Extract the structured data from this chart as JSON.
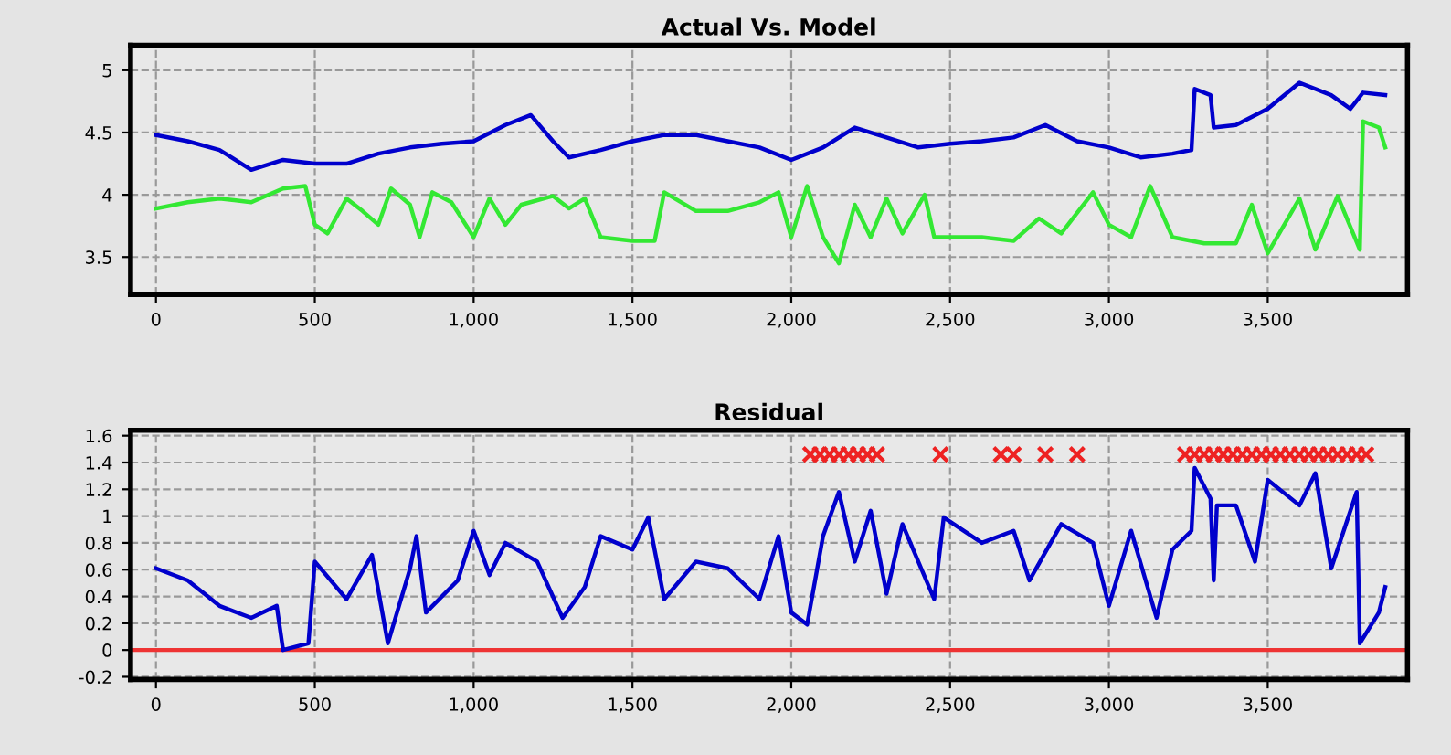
{
  "chart_data": [
    {
      "type": "line",
      "title": "Actual Vs. Model",
      "xlim": [
        -80,
        3940
      ],
      "ylim": [
        3.2,
        5.2
      ],
      "xticks": [
        0,
        500,
        {
          "value": 1000,
          "label": "1,000"
        },
        {
          "value": 1500,
          "label": "1,500"
        },
        {
          "value": 2000,
          "label": "2,000"
        },
        {
          "value": 2500,
          "label": "2,500"
        },
        {
          "value": 3000,
          "label": "3,000"
        },
        {
          "value": 3500,
          "label": "3,500"
        }
      ],
      "yticks": [
        3.5,
        4,
        4.5,
        5
      ],
      "grid": true,
      "legend": false,
      "series": [
        {
          "color": "#0000cc",
          "x": [
            0,
            100,
            200,
            300,
            400,
            500,
            600,
            700,
            800,
            900,
            1000,
            1100,
            1180,
            1250,
            1300,
            1400,
            1500,
            1600,
            1700,
            1800,
            1900,
            2000,
            2100,
            2200,
            2300,
            2400,
            2500,
            2600,
            2700,
            2800,
            2900,
            3000,
            3100,
            3200,
            3260,
            3270,
            3320,
            3330,
            3400,
            3500,
            3600,
            3700,
            3760,
            3800,
            3870
          ],
          "values": [
            4.48,
            4.43,
            4.36,
            4.2,
            4.28,
            4.25,
            4.25,
            4.33,
            4.38,
            4.41,
            4.43,
            4.56,
            4.64,
            4.43,
            4.3,
            4.36,
            4.43,
            4.48,
            4.48,
            4.43,
            4.38,
            4.28,
            4.38,
            4.54,
            4.46,
            4.38,
            4.41,
            4.43,
            4.46,
            4.56,
            4.43,
            4.38,
            4.3,
            4.33,
            4.36,
            4.85,
            4.8,
            4.54,
            4.56,
            4.69,
            4.9,
            4.8,
            4.69,
            4.82,
            4.8
          ]
        },
        {
          "color": "#33e833",
          "x": [
            0,
            100,
            200,
            300,
            400,
            470,
            500,
            540,
            600,
            650,
            700,
            740,
            800,
            830,
            870,
            930,
            1000,
            1050,
            1100,
            1150,
            1250,
            1300,
            1350,
            1400,
            1500,
            1570,
            1600,
            1700,
            1800,
            1900,
            1960,
            2000,
            2050,
            2100,
            2150,
            2200,
            2250,
            2300,
            2350,
            2420,
            2450,
            2600,
            2700,
            2780,
            2850,
            2950,
            3000,
            3070,
            3130,
            3200,
            3300,
            3400,
            3450,
            3500,
            3600,
            3650,
            3720,
            3790,
            3800,
            3850,
            3870
          ],
          "values": [
            3.89,
            3.94,
            3.97,
            3.94,
            4.05,
            4.07,
            3.76,
            3.69,
            3.97,
            3.87,
            3.76,
            4.05,
            3.92,
            3.66,
            4.02,
            3.94,
            3.66,
            3.97,
            3.76,
            3.92,
            3.99,
            3.89,
            3.97,
            3.66,
            3.63,
            3.63,
            4.02,
            3.87,
            3.87,
            3.94,
            4.02,
            3.66,
            4.07,
            3.66,
            3.45,
            3.92,
            3.66,
            3.97,
            3.69,
            4.0,
            3.66,
            3.66,
            3.63,
            3.81,
            3.69,
            4.02,
            3.76,
            3.66,
            4.07,
            3.66,
            3.61,
            3.61,
            3.92,
            3.53,
            3.97,
            3.56,
            3.99,
            3.56,
            4.59,
            4.54,
            4.38
          ]
        }
      ]
    },
    {
      "type": "line",
      "title": "Residual",
      "xlim": [
        -80,
        3940
      ],
      "ylim": [
        -0.22,
        1.64
      ],
      "xticks": [
        0,
        500,
        {
          "value": 1000,
          "label": "1,000"
        },
        {
          "value": 1500,
          "label": "1,500"
        },
        {
          "value": 2000,
          "label": "2,000"
        },
        {
          "value": 2500,
          "label": "2,500"
        },
        {
          "value": 3000,
          "label": "3,000"
        },
        {
          "value": 3500,
          "label": "3,500"
        }
      ],
      "yticks": [
        -0.2,
        0,
        0.2,
        0.4,
        0.6,
        0.8,
        1,
        1.2,
        1.4,
        1.6
      ],
      "grid": true,
      "legend": false,
      "ref_lines": [
        {
          "axis": "y",
          "value": 0,
          "color": "#ee3333"
        }
      ],
      "series": [
        {
          "color": "#0000cc",
          "x": [
            0,
            100,
            200,
            300,
            380,
            400,
            480,
            500,
            600,
            680,
            730,
            800,
            820,
            850,
            950,
            1000,
            1050,
            1100,
            1200,
            1280,
            1350,
            1400,
            1500,
            1550,
            1600,
            1700,
            1800,
            1900,
            1960,
            2000,
            2050,
            2100,
            2150,
            2200,
            2250,
            2300,
            2350,
            2450,
            2480,
            2600,
            2700,
            2750,
            2850,
            2950,
            3000,
            3070,
            3150,
            3200,
            3260,
            3270,
            3320,
            3330,
            3340,
            3400,
            3460,
            3500,
            3600,
            3650,
            3700,
            3780,
            3790,
            3850,
            3870
          ],
          "values": [
            0.61,
            0.52,
            0.33,
            0.24,
            0.33,
            0.0,
            0.05,
            0.66,
            0.38,
            0.71,
            0.05,
            0.61,
            0.85,
            0.28,
            0.52,
            0.89,
            0.56,
            0.8,
            0.66,
            0.24,
            0.47,
            0.85,
            0.75,
            0.99,
            0.38,
            0.66,
            0.61,
            0.38,
            0.85,
            0.28,
            0.19,
            0.85,
            1.18,
            0.66,
            1.04,
            0.42,
            0.94,
            0.38,
            0.99,
            0.8,
            0.89,
            0.52,
            0.94,
            0.8,
            0.33,
            0.89,
            0.24,
            0.75,
            0.89,
            1.36,
            1.13,
            0.52,
            1.08,
            1.08,
            0.66,
            1.27,
            1.08,
            1.32,
            0.61,
            1.18,
            0.05,
            0.28,
            0.47
          ]
        },
        {
          "type": "scatter",
          "marker": "cross",
          "color": "#ee2222",
          "x": [
            2060,
            2090,
            2120,
            2150,
            2180,
            2210,
            2240,
            2270,
            2470,
            2660,
            2700,
            2800,
            2900,
            3240,
            3270,
            3300,
            3330,
            3360,
            3390,
            3420,
            3450,
            3480,
            3510,
            3540,
            3570,
            3600,
            3630,
            3660,
            3690,
            3720,
            3750,
            3780,
            3810
          ],
          "values": [
            1.46,
            1.46,
            1.46,
            1.46,
            1.46,
            1.46,
            1.46,
            1.46,
            1.46,
            1.46,
            1.46,
            1.46,
            1.46,
            1.46,
            1.46,
            1.46,
            1.46,
            1.46,
            1.46,
            1.46,
            1.46,
            1.46,
            1.46,
            1.46,
            1.46,
            1.46,
            1.46,
            1.46,
            1.46,
            1.46,
            1.46,
            1.46,
            1.46
          ]
        }
      ]
    }
  ]
}
